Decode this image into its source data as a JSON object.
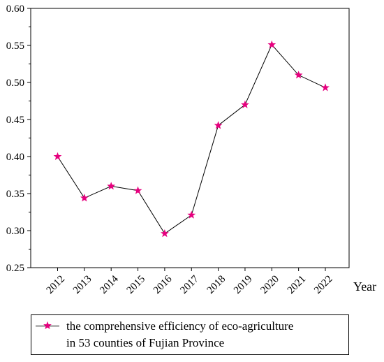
{
  "chart_data": {
    "type": "line",
    "title": "",
    "xlabel": "Year",
    "ylabel": "",
    "x": [
      "2012",
      "2013",
      "2014",
      "2015",
      "2016",
      "2017",
      "2018",
      "2019",
      "2020",
      "2021",
      "2022"
    ],
    "series": [
      {
        "name": "the comprehensive efficiency of eco-agriculture in 53 counties of Fujian Province",
        "values": [
          0.4,
          0.344,
          0.36,
          0.354,
          0.296,
          0.321,
          0.442,
          0.47,
          0.551,
          0.51,
          0.493
        ]
      }
    ],
    "ylim": [
      0.25,
      0.6
    ],
    "yticks": [
      "0.25",
      "0.30",
      "0.35",
      "0.40",
      "0.45",
      "0.50",
      "0.55",
      "0.60"
    ],
    "grid": false,
    "legend": "bottom",
    "marker": "star"
  },
  "legend": {
    "line1": "the comprehensive efficiency of eco-agriculture",
    "line2": "in 53 counties of Fujian Province"
  },
  "colors": {
    "marker": "#e6007e",
    "line": "#000000",
    "axis": "#000000"
  }
}
